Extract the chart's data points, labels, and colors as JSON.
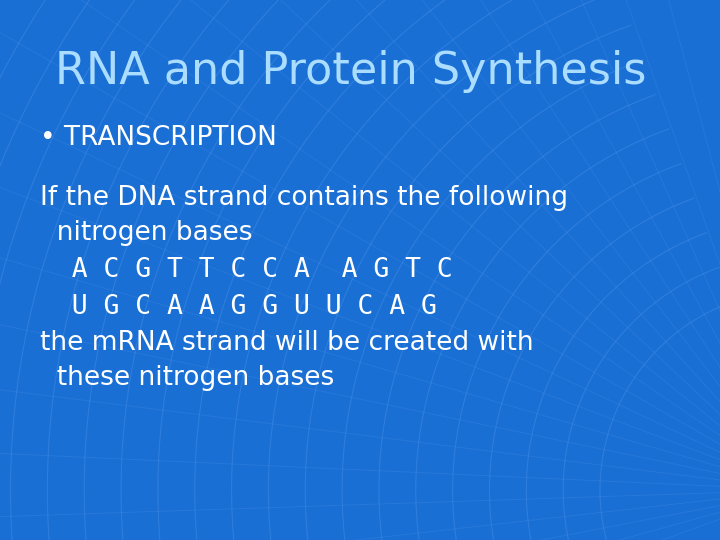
{
  "title": "RNA and Protein Synthesis",
  "title_color": "#aaddff",
  "title_fontsize": 32,
  "bg_color": "#1a6fd4",
  "bullet_text": "• TRANSCRIPTION",
  "bullet_color": "#ffffff",
  "bullet_fontsize": 19,
  "body_lines": [
    "If the DNA strand contains the following",
    "  nitrogen bases",
    "  A C G T T C C A  A G T C",
    "  U G C A A G G U U C A G",
    "the mRNA strand will be created with",
    "  these nitrogen bases"
  ],
  "body_color": "#ffffff",
  "body_fontsize": 19,
  "seq_fontsize": 19,
  "grid_color": "#5599ee",
  "grid_alpha": 0.35
}
